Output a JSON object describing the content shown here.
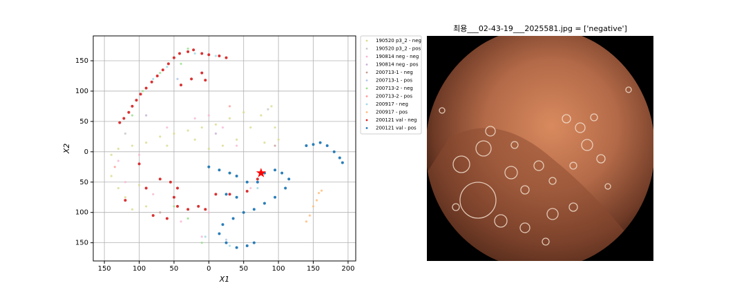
{
  "chart_data": {
    "type": "scatter",
    "xlabel": "X1",
    "ylabel": "X2",
    "xlim": [
      -166,
      211
    ],
    "ylim": [
      -180,
      191
    ],
    "xticks": [
      {
        "value": -150,
        "label": "150"
      },
      {
        "value": -100,
        "label": "100"
      },
      {
        "value": -50,
        "label": "50"
      },
      0,
      50,
      100,
      150,
      200
    ],
    "yticks": [
      150,
      100,
      50,
      0,
      {
        "value": -50,
        "label": "50"
      },
      {
        "value": -100,
        "label": "100"
      },
      {
        "value": -150,
        "label": "150"
      }
    ],
    "grid": true,
    "legend": "outside upper right",
    "series": [
      {
        "name": "190520 p3_2 - neg",
        "color": "#dbdb8d",
        "x": [
          -140,
          -130,
          -110,
          -90,
          -70,
          -50,
          -30,
          -10,
          10,
          30,
          50,
          60,
          75,
          90,
          95,
          100,
          -140,
          -130,
          -120,
          -110,
          -90,
          -100,
          -20,
          -60,
          0,
          20,
          40,
          80
        ],
        "values": [
          -5,
          5,
          10,
          15,
          25,
          30,
          35,
          40,
          45,
          55,
          65,
          40,
          60,
          75,
          40,
          20,
          -40,
          -60,
          -75,
          -95,
          -90,
          -55,
          20,
          10,
          5,
          10,
          20,
          15
        ]
      },
      {
        "name": "190520 p3_2 - pos",
        "color": "#c7c7c7",
        "x": [
          -120,
          85
        ],
        "values": [
          30,
          70
        ]
      },
      {
        "name": "190814 neg - neg",
        "color": "#f7b6d2",
        "x": [
          -130,
          -100,
          -60,
          -20,
          0,
          20,
          40,
          -120,
          -80,
          -40,
          0,
          -10,
          60
        ],
        "values": [
          -15,
          -5,
          40,
          55,
          60,
          40,
          10,
          -50,
          -70,
          -115,
          -100,
          -140,
          -60
        ]
      },
      {
        "name": "190814 neg - pos",
        "color": "#c5b0d5",
        "x": [
          -90,
          10
        ],
        "values": [
          60,
          30
        ]
      },
      {
        "name": "200713-1 - neg",
        "color": "#c49c94",
        "x": [
          -70,
          95
        ],
        "values": [
          -100,
          10
        ]
      },
      {
        "name": "200713-1 - pos",
        "color": "#aec7e8",
        "x": [
          -45,
          25
        ],
        "values": [
          120,
          -145
        ]
      },
      {
        "name": "200713-2 - neg",
        "color": "#98df8a",
        "x": [
          -95,
          -70,
          -40,
          -30,
          -10,
          -110,
          -50,
          -30
        ],
        "values": [
          100,
          130,
          145,
          170,
          -150,
          60,
          -90,
          -110
        ]
      },
      {
        "name": "200713-2 - pos",
        "color": "#ff9896",
        "x": [
          -135,
          30
        ],
        "values": [
          -25,
          75
        ]
      },
      {
        "name": "200917 - neg",
        "color": "#9edae5",
        "x": [
          -20,
          10,
          -60,
          -80,
          -5,
          70,
          30
        ],
        "values": [
          162,
          158,
          140,
          120,
          -140,
          -60,
          -155
        ]
      },
      {
        "name": "200917 - pos",
        "color": "#ffbb78",
        "x": [
          140,
          145,
          150,
          155,
          158,
          162
        ],
        "values": [
          -115,
          -105,
          -90,
          -80,
          -68,
          -64
        ]
      },
      {
        "name": "200121 val - neg",
        "color": "#d62728",
        "x": [
          -128,
          -122,
          -115,
          -110,
          -104,
          -98,
          -90,
          -82,
          -74,
          -66,
          -58,
          -50,
          -42,
          -30,
          -22,
          -10,
          0,
          15,
          25,
          -40,
          -25,
          -10,
          -5,
          -70,
          -55,
          -45,
          -50,
          -45,
          -30,
          -15,
          -5,
          10,
          30,
          55,
          70,
          -100,
          -90,
          -120,
          -80,
          -60
        ],
        "values": [
          48,
          55,
          65,
          75,
          85,
          95,
          105,
          115,
          125,
          135,
          145,
          155,
          162,
          165,
          168,
          162,
          160,
          158,
          155,
          110,
          120,
          130,
          118,
          -45,
          -50,
          -60,
          -75,
          -90,
          -95,
          -90,
          -95,
          -70,
          -70,
          -65,
          -45,
          -20,
          -60,
          -80,
          -105,
          -110
        ]
      },
      {
        "name": "200121 val - pos",
        "color": "#1f77b4",
        "x": [
          140,
          150,
          160,
          170,
          180,
          188,
          192,
          0,
          15,
          30,
          40,
          55,
          70,
          80,
          95,
          105,
          115,
          110,
          95,
          80,
          65,
          50,
          35,
          20,
          15,
          25,
          40,
          55,
          65,
          40,
          25
        ],
        "values": [
          10,
          12,
          15,
          10,
          0,
          -10,
          -18,
          -25,
          -30,
          -35,
          -40,
          -50,
          -50,
          -35,
          -30,
          -35,
          -45,
          -60,
          -75,
          -85,
          -95,
          -100,
          -110,
          -120,
          -135,
          -150,
          -158,
          -155,
          -150,
          -75,
          -70
        ]
      }
    ],
    "highlight": {
      "x": 75,
      "y": -35,
      "color": "#ff0000"
    }
  },
  "image_panel": {
    "title": "최용___02-43-19___2025581.jpg = ['negative']"
  }
}
